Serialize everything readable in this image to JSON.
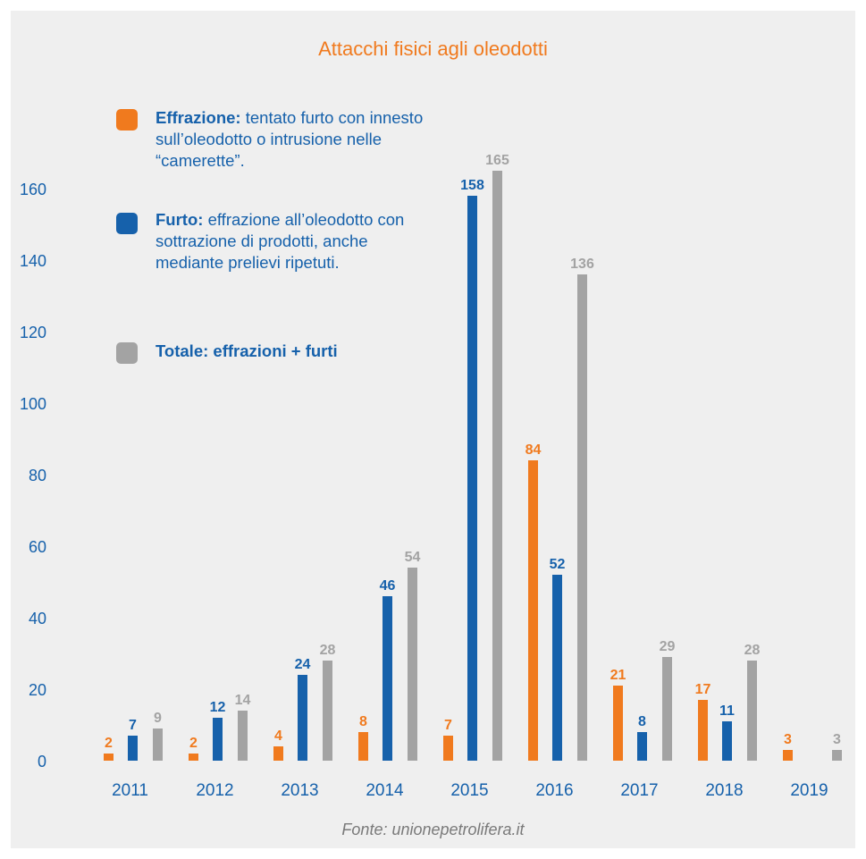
{
  "chart_data": {
    "type": "bar",
    "title": "Attacchi fisici agli oleodotti",
    "categories": [
      "2011",
      "2012",
      "2013",
      "2014",
      "2015",
      "2016",
      "2017",
      "2018",
      "2019"
    ],
    "series": [
      {
        "name": "Effrazione",
        "color": "#f07a1e",
        "values": [
          2,
          2,
          4,
          8,
          7,
          84,
          21,
          17,
          3
        ]
      },
      {
        "name": "Furto",
        "color": "#1661ab",
        "values": [
          7,
          12,
          24,
          46,
          158,
          52,
          8,
          11,
          null
        ]
      },
      {
        "name": "Totale",
        "color": "#a3a3a3",
        "values": [
          9,
          14,
          28,
          54,
          165,
          136,
          29,
          28,
          3
        ]
      }
    ],
    "ylim": [
      0,
      165
    ],
    "yticks": [
      0,
      20,
      40,
      60,
      80,
      100,
      120,
      140,
      160
    ],
    "grid": false,
    "legend": "top-left"
  },
  "legend": {
    "effrazione": {
      "label": "Effrazione:",
      "text": "tentato furto con innesto sull’oleodotto o intrusione nelle “camerette”."
    },
    "furto": {
      "label": "Furto:",
      "text": "effrazione all’oleodotto con sottrazione di prodotti, anche mediante prelievi ripetuti."
    },
    "totale": {
      "label": "Totale: effrazioni + furti"
    }
  },
  "source": "Fonte: unionepetrolifera.it"
}
